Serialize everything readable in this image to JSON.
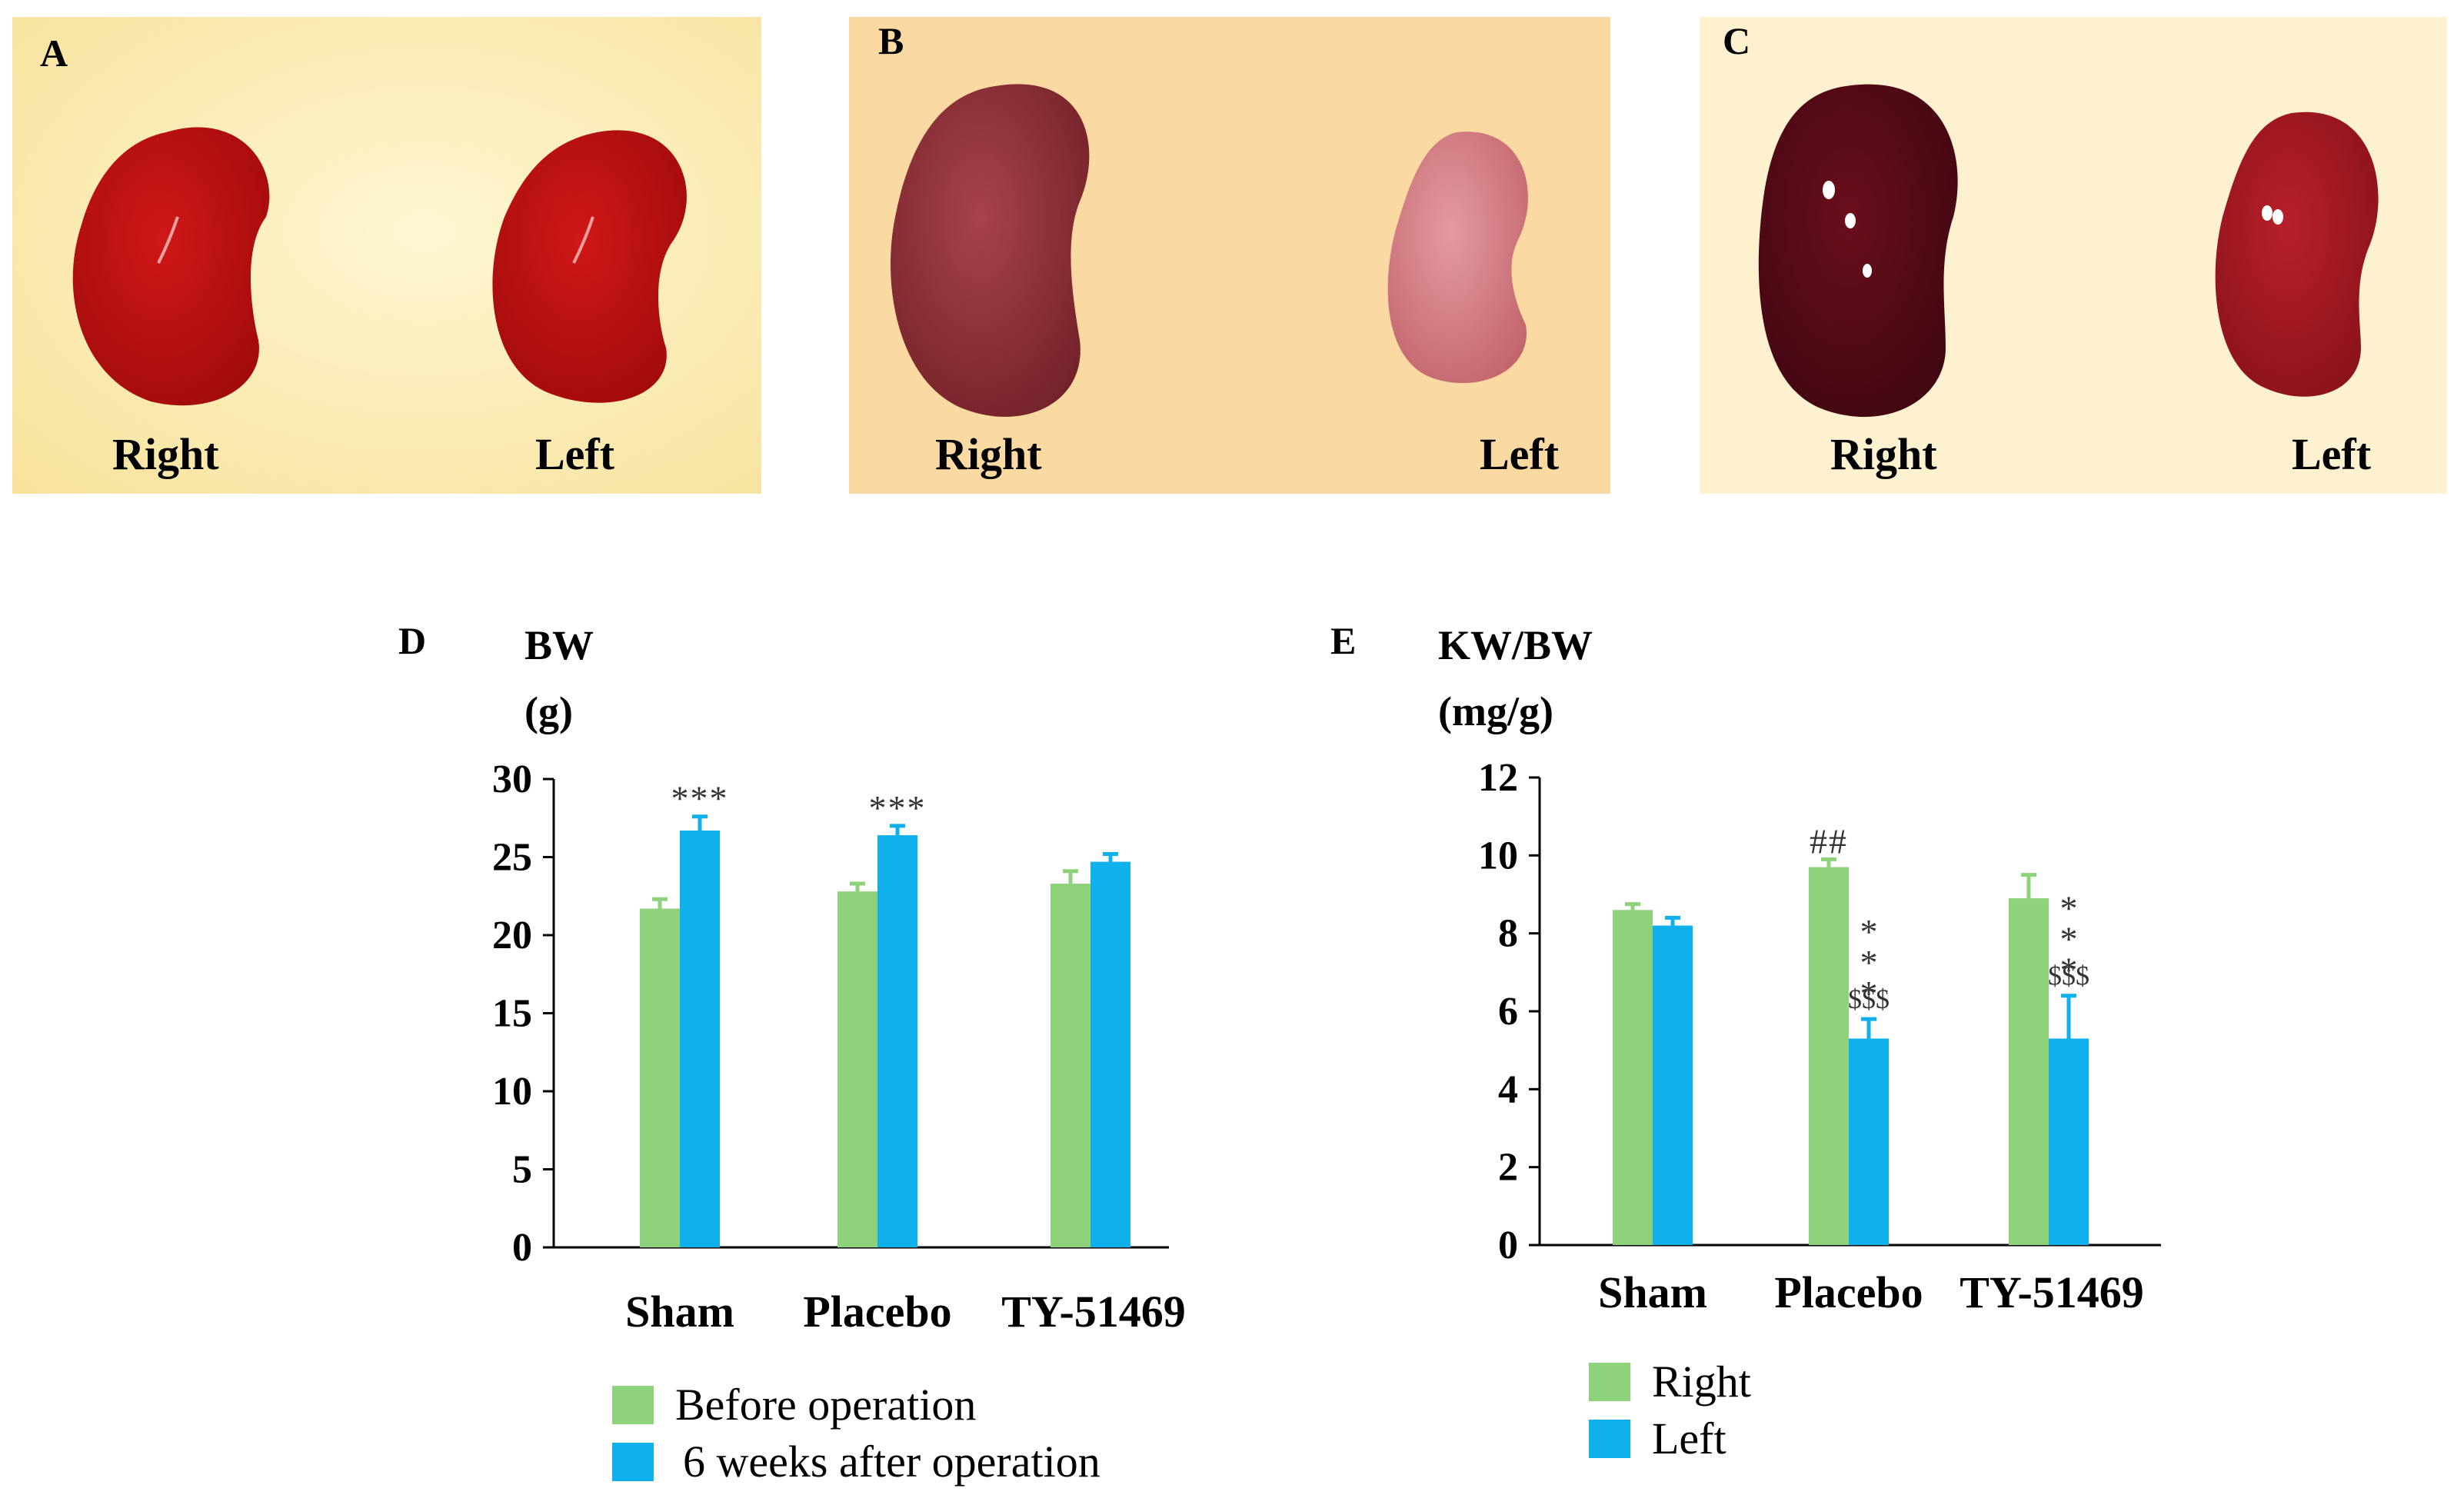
{
  "photos": {
    "A": {
      "letter": "A",
      "right_label": "Right",
      "left_label": "Left",
      "bg": "#fbe8a6"
    },
    "B": {
      "letter": "B",
      "right_label": "Right",
      "left_label": "Left",
      "bg": "#fbd7a0"
    },
    "C": {
      "letter": "C",
      "right_label": "Right",
      "left_label": "Left",
      "bg": "#fdf0cc"
    }
  },
  "colors": {
    "green": "#8fd27c",
    "blue": "#0fb0ec",
    "axis": "#000000",
    "annotation": "#333333"
  },
  "chart_data": [
    {
      "panel": "D",
      "type": "bar",
      "ylabel_line1": "BW",
      "ylabel_line2": "(g)",
      "categories": [
        "Sham",
        "Placebo",
        "TY-51469"
      ],
      "ylim": [
        0,
        30
      ],
      "yticks": [
        0,
        5,
        10,
        15,
        20,
        25,
        30
      ],
      "grid": false,
      "series": [
        {
          "name": "Before operation",
          "color": "green",
          "values": [
            21.7,
            22.8,
            23.3
          ],
          "errors": [
            0.6,
            0.5,
            0.8
          ]
        },
        {
          "name": "6 weeks after operation",
          "color": "blue",
          "values": [
            26.7,
            26.4,
            24.7
          ],
          "errors": [
            0.9,
            0.6,
            0.5
          ]
        }
      ],
      "annotations": [
        {
          "category": 0,
          "series": 1,
          "text": "***",
          "style": "row"
        },
        {
          "category": 1,
          "series": 1,
          "text": "***",
          "style": "row"
        }
      ],
      "legend": [
        {
          "label": "Before operation",
          "color": "green"
        },
        {
          "label": "6 weeks after operation",
          "color": "blue"
        }
      ]
    },
    {
      "panel": "E",
      "type": "bar",
      "ylabel_line1": "KW/BW",
      "ylabel_line2": "(mg/g)",
      "categories": [
        "Sham",
        "Placebo",
        "TY-51469"
      ],
      "ylim": [
        0,
        12
      ],
      "yticks": [
        0,
        2,
        4,
        6,
        8,
        10,
        12
      ],
      "grid": false,
      "series": [
        {
          "name": "Right",
          "color": "green",
          "values": [
            8.6,
            9.7,
            8.9
          ],
          "errors": [
            0.15,
            0.2,
            0.6
          ]
        },
        {
          "name": "Left",
          "color": "blue",
          "values": [
            8.2,
            5.3,
            5.3
          ],
          "errors": [
            0.2,
            0.5,
            1.1
          ]
        }
      ],
      "annotations": [
        {
          "category": 1,
          "series": 0,
          "text": "##",
          "style": "row"
        },
        {
          "category": 1,
          "series": 1,
          "text": "***",
          "style": "stack",
          "text2": "$$$"
        },
        {
          "category": 2,
          "series": 1,
          "text": "***",
          "style": "stack",
          "text2": "$$$"
        }
      ],
      "legend": [
        {
          "label": "Right",
          "color": "green"
        },
        {
          "label": "Left",
          "color": "blue"
        }
      ]
    }
  ]
}
